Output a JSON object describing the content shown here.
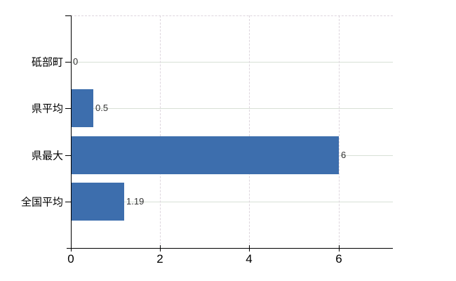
{
  "chart_data": {
    "type": "bar",
    "orientation": "horizontal",
    "categories": [
      "砥部町",
      "県平均",
      "県最大",
      "全国平均"
    ],
    "values": [
      0,
      0.5,
      6,
      1.19
    ],
    "value_labels": [
      "0",
      "0.5",
      "6",
      "1.19"
    ],
    "x_ticks": [
      0,
      2,
      4,
      6
    ],
    "x_tick_labels": [
      "0",
      "2",
      "4",
      "6"
    ],
    "xlim": [
      0,
      7.2
    ],
    "grid": true,
    "legend": false,
    "colors": {
      "bar": "#3d6ead",
      "h_gridline": "#d8e0d6",
      "v_gridline": "#ddd5dd",
      "axis": "#000000",
      "category_label": "#000000",
      "tick_label": "#000000",
      "value_label": "#333333",
      "background": "#ffffff"
    }
  }
}
